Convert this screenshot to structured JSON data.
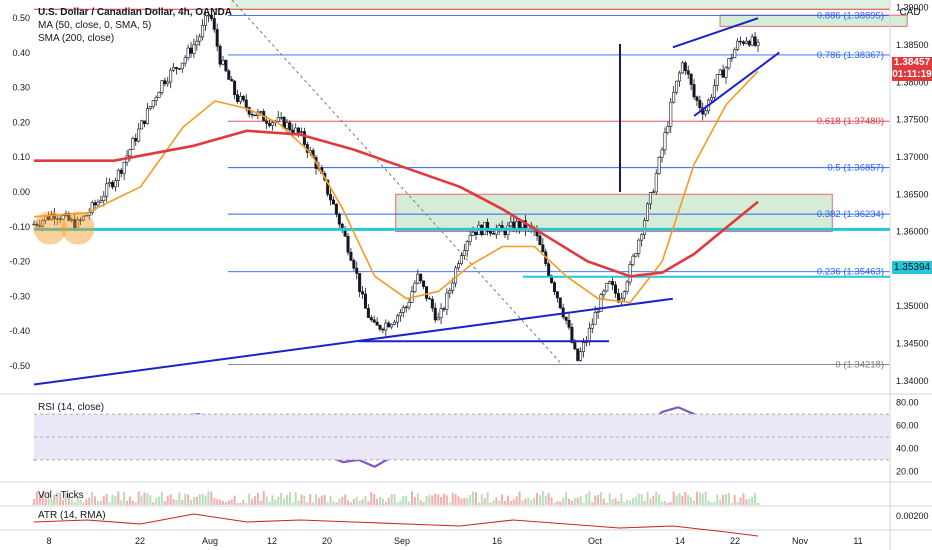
{
  "legend": {
    "title": "U.S. Dollar / Canadian Dollar, 4h, OANDA",
    "ma50": "MA (50, close, 0, SMA, 5)",
    "ma200": "SMA (200, close)"
  },
  "currency": "CAD",
  "price_tag": {
    "price": "1.38457",
    "countdown": "01:11:19"
  },
  "cyan_tag": "1.35394",
  "rsi_label": "RSI (14, close)",
  "vol_label": "Vol · Ticks",
  "atr_label": "ATR (14, RMA)",
  "colors": {
    "candle": "#131722",
    "ma50": "#f59a23",
    "sma200": "#e0393e",
    "trend": "#1a22c8",
    "cyan": "#26c6da",
    "fib_blue": "#2962ff",
    "fib_red": "#e0393e",
    "zone_fill": "#c8e6c9",
    "rsi_line": "#7e57c2",
    "rsi_ma": "#f5c26b",
    "rsi_band": "#ece7f6",
    "atr": "#c62828",
    "orange_circle": "#f59a23"
  },
  "chart_data": [
    {
      "type": "candlestick",
      "title": "U.S. Dollar / Canadian Dollar, 4h, OANDA",
      "right_axis": [
        "1.39000",
        "1.38500",
        "1.38000",
        "1.37500",
        "1.37000",
        "1.36500",
        "1.36000",
        "1.35500",
        "1.35000",
        "1.34500",
        "1.34000"
      ],
      "left_axis": [
        "0.50",
        "0.40",
        "0.30",
        "0.20",
        "0.10",
        "0.00",
        "-0.10",
        "-0.20",
        "-0.30",
        "-0.40",
        "-0.50"
      ],
      "x_ticks": [
        "8",
        "22",
        "Aug",
        "12",
        "20",
        "Sep",
        "16",
        "Oct",
        "14",
        "22",
        "Nov",
        "11"
      ],
      "ylim": [
        1.3385,
        1.3905
      ],
      "fib_levels": [
        {
          "label": "0.886 (1.38895)",
          "value": 1.38895
        },
        {
          "label": "0.786 (1.38367)",
          "value": 1.38367
        },
        {
          "label": "0.618 (1.37480)",
          "value": 1.3748
        },
        {
          "label": "0.5 (1.36857)",
          "value": 1.36857
        },
        {
          "label": "0.382 (1.36234)",
          "value": 1.36234
        },
        {
          "label": "0.236 (1.35463)",
          "value": 1.35463
        },
        {
          "label": "0 (1.34218)",
          "value": 1.34218
        }
      ],
      "horizontal_level": 1.35394,
      "last_price": 1.38457,
      "close_path": [
        [
          0,
          1.361
        ],
        [
          4,
          1.3625
        ],
        [
          8,
          1.3608
        ],
        [
          12,
          1.364
        ],
        [
          16,
          1.368
        ],
        [
          20,
          1.374
        ],
        [
          24,
          1.38
        ],
        [
          28,
          1.383
        ],
        [
          31,
          1.386
        ],
        [
          33,
          1.3895
        ],
        [
          35,
          1.383
        ],
        [
          38,
          1.378
        ],
        [
          41,
          1.376
        ],
        [
          44,
          1.375
        ],
        [
          47,
          1.3745
        ],
        [
          50,
          1.373
        ],
        [
          53,
          1.369
        ],
        [
          56,
          1.364
        ],
        [
          58,
          1.36
        ],
        [
          60,
          1.356
        ],
        [
          62,
          1.35
        ],
        [
          64,
          1.347
        ],
        [
          67,
          1.348
        ],
        [
          70,
          1.35
        ],
        [
          72,
          1.354
        ],
        [
          74,
          1.351
        ],
        [
          76,
          1.348
        ],
        [
          78,
          1.352
        ],
        [
          80,
          1.357
        ],
        [
          82,
          1.36
        ],
        [
          85,
          1.3605
        ],
        [
          88,
          1.36
        ],
        [
          91,
          1.361
        ],
        [
          94,
          1.36
        ],
        [
          96,
          1.356
        ],
        [
          98,
          1.352
        ],
        [
          100,
          1.348
        ],
        [
          102,
          1.3425
        ],
        [
          104,
          1.346
        ],
        [
          106,
          1.35
        ],
        [
          108,
          1.353
        ],
        [
          110,
          1.351
        ],
        [
          112,
          1.355
        ],
        [
          114,
          1.36
        ],
        [
          116,
          1.365
        ],
        [
          118,
          1.371
        ],
        [
          120,
          1.378
        ],
        [
          122,
          1.383
        ],
        [
          124,
          1.378
        ],
        [
          126,
          1.376
        ],
        [
          128,
          1.38
        ],
        [
          130,
          1.382
        ],
        [
          132,
          1.385
        ],
        [
          134,
          1.386
        ],
        [
          136,
          1.3846
        ]
      ],
      "ma50_path": [
        [
          0,
          1.362
        ],
        [
          10,
          1.3625
        ],
        [
          20,
          1.366
        ],
        [
          28,
          1.374
        ],
        [
          34,
          1.3775
        ],
        [
          40,
          1.3765
        ],
        [
          46,
          1.3745
        ],
        [
          52,
          1.3705
        ],
        [
          58,
          1.363
        ],
        [
          64,
          1.354
        ],
        [
          70,
          1.351
        ],
        [
          76,
          1.352
        ],
        [
          82,
          1.3555
        ],
        [
          88,
          1.358
        ],
        [
          94,
          1.358
        ],
        [
          100,
          1.354
        ],
        [
          106,
          1.351
        ],
        [
          112,
          1.3505
        ],
        [
          118,
          1.356
        ],
        [
          124,
          1.369
        ],
        [
          130,
          1.377
        ],
        [
          136,
          1.3815
        ]
      ],
      "sma200_path": [
        [
          0,
          1.3695
        ],
        [
          15,
          1.3695
        ],
        [
          30,
          1.3715
        ],
        [
          40,
          1.3735
        ],
        [
          50,
          1.373
        ],
        [
          60,
          1.371
        ],
        [
          70,
          1.3685
        ],
        [
          80,
          1.366
        ],
        [
          88,
          1.363
        ],
        [
          96,
          1.3595
        ],
        [
          104,
          1.356
        ],
        [
          112,
          1.354
        ],
        [
          118,
          1.3545
        ],
        [
          124,
          1.357
        ],
        [
          130,
          1.3605
        ],
        [
          136,
          1.364
        ]
      ],
      "trendlines": [
        {
          "from": [
            0,
            1.3395
          ],
          "to": [
            120,
            1.351
          ]
        },
        {
          "from": [
            61,
            1.3453
          ],
          "to": [
            108,
            1.3453
          ]
        },
        {
          "from": [
            120,
            1.3847
          ],
          "to": [
            136,
            1.3886
          ]
        },
        {
          "from": [
            124,
            1.3755
          ],
          "to": [
            140,
            1.384
          ]
        }
      ],
      "zones": [
        {
          "from": [
            58,
            1.365
          ],
          "to": [
            128,
            1.36
          ]
        },
        {
          "from": [
            110,
            1.389
          ],
          "to": [
            140,
            1.3875
          ]
        }
      ]
    },
    {
      "type": "line",
      "name": "RSI (14, close)",
      "right_axis": [
        "80.00",
        "60.00",
        "40.00",
        "20.00"
      ],
      "ylim": [
        15,
        85
      ],
      "band": [
        30,
        70
      ],
      "rsi_path": [
        [
          0,
          30
        ],
        [
          4,
          40
        ],
        [
          8,
          42
        ],
        [
          12,
          50
        ],
        [
          16,
          52
        ],
        [
          20,
          62
        ],
        [
          24,
          66
        ],
        [
          28,
          68
        ],
        [
          31,
          70
        ],
        [
          34,
          60
        ],
        [
          37,
          48
        ],
        [
          40,
          50
        ],
        [
          43,
          44
        ],
        [
          46,
          50
        ],
        [
          49,
          48
        ],
        [
          52,
          42
        ],
        [
          55,
          34
        ],
        [
          58,
          28
        ],
        [
          61,
          30
        ],
        [
          64,
          24
        ],
        [
          67,
          32
        ],
        [
          70,
          40
        ],
        [
          73,
          50
        ],
        [
          76,
          44
        ],
        [
          79,
          56
        ],
        [
          82,
          60
        ],
        [
          85,
          56
        ],
        [
          88,
          52
        ],
        [
          91,
          58
        ],
        [
          94,
          52
        ],
        [
          97,
          38
        ],
        [
          100,
          32
        ],
        [
          103,
          34
        ],
        [
          106,
          44
        ],
        [
          109,
          56
        ],
        [
          112,
          62
        ],
        [
          115,
          60
        ],
        [
          118,
          72
        ],
        [
          121,
          76
        ],
        [
          124,
          70
        ],
        [
          126,
          50
        ],
        [
          128,
          58
        ],
        [
          130,
          62
        ],
        [
          132,
          60
        ],
        [
          134,
          66
        ],
        [
          136,
          58
        ]
      ],
      "rsi_ma_path": [
        [
          0,
          38
        ],
        [
          10,
          45
        ],
        [
          20,
          56
        ],
        [
          30,
          64
        ],
        [
          40,
          54
        ],
        [
          50,
          47
        ],
        [
          60,
          32
        ],
        [
          70,
          36
        ],
        [
          80,
          50
        ],
        [
          90,
          55
        ],
        [
          100,
          38
        ],
        [
          110,
          52
        ],
        [
          120,
          66
        ],
        [
          130,
          58
        ],
        [
          136,
          60
        ]
      ]
    },
    {
      "type": "bar",
      "name": "Vol · Ticks"
    },
    {
      "type": "line",
      "name": "ATR (14, RMA)",
      "right_axis": [
        "0.00200"
      ],
      "atr_path": [
        [
          0,
          0.0017
        ],
        [
          10,
          0.0018
        ],
        [
          20,
          0.0016
        ],
        [
          30,
          0.0021
        ],
        [
          40,
          0.0017
        ],
        [
          50,
          0.0018
        ],
        [
          60,
          0.0017
        ],
        [
          70,
          0.0016
        ],
        [
          80,
          0.0015
        ],
        [
          90,
          0.0018
        ],
        [
          100,
          0.0016
        ],
        [
          110,
          0.0014
        ],
        [
          120,
          0.0015
        ],
        [
          130,
          0.0012
        ],
        [
          136,
          0.001
        ]
      ]
    }
  ]
}
